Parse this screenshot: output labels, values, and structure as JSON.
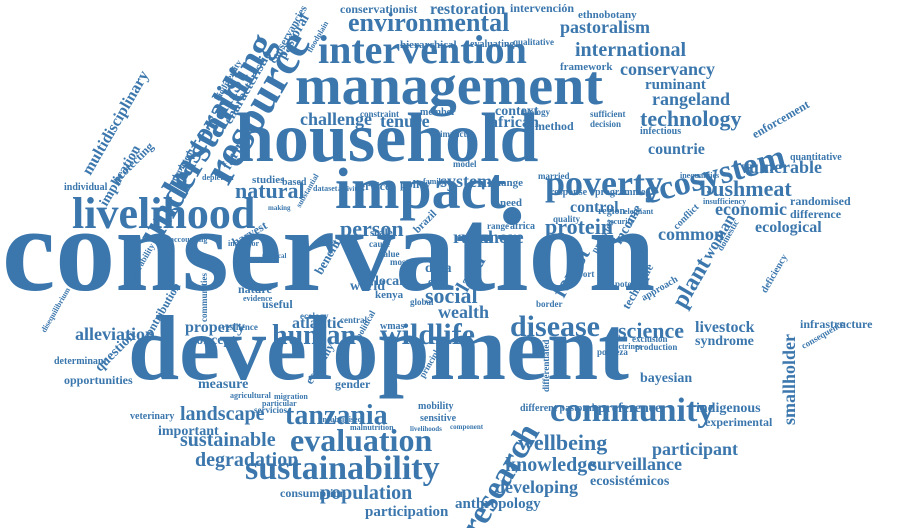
{
  "cloud": {
    "color": "#3b77ad",
    "words": {
      "conservation": "conservation",
      "development": "development",
      "household": "household",
      "management": "management",
      "impact": "impact",
      "livelihood": "livelihood",
      "intervention": "intervention",
      "resource": "resource",
      "understanding": "understanding",
      "environmental": "environmental",
      "poverty": "poverty",
      "ecosystem": "ecosystem",
      "tanzania": "tanzania",
      "community": "community",
      "sustainability": "sustainability",
      "evaluation": "evaluation",
      "research": "research",
      "disease": "disease",
      "wildlife": "wildlife",
      "human": "human",
      "pastoralist": "pastoralist",
      "rangeland": "rangeland",
      "conservancy": "conservancy",
      "international": "international",
      "pastoralism": "pastoralism",
      "restoration": "restoration",
      "intervencion": "intervención",
      "ethnobotany": "ethnobotany",
      "conservationist": "conservationist",
      "technology": "technology",
      "ruminant": "ruminant",
      "vulnerable": "vulnerable",
      "bushmeat": "bushmeat",
      "economic": "economic",
      "ecological": "ecological",
      "protein": "protein",
      "control": "control",
      "person": "person",
      "natural": "natural",
      "tenure": "tenure",
      "challenge": "challenge",
      "african": "african",
      "science": "science",
      "property": "property",
      "alleviation": "alleviation",
      "landscape": "landscape",
      "sustainable": "sustainable",
      "degradation": "degradation",
      "population": "population",
      "wellbeing": "wellbeing",
      "knowledge": "knowledge",
      "surveillance": "surveillance",
      "developing": "developing",
      "ecosistemicos": "ecosistémicos",
      "anthropology": "anthropology",
      "participation": "participation",
      "participant": "participant",
      "consumption": "consumption",
      "smallholder": "smallholder",
      "livestock": "livestock",
      "syndrome": "syndrome",
      "indigenous": "indigenous",
      "experimental": "experimental",
      "bayesian": "bayesian",
      "preference": "preference",
      "infrastructure": "infrastructure",
      "common": "common",
      "woman": "woman",
      "plant": "plant",
      "forest": "forest",
      "social": "social",
      "wealth": "wealth",
      "land": "land",
      "rural": "rural",
      "more": "more",
      "system": "system",
      "multidisciplinary": "multidisciplinary",
      "implication": "implication",
      "protecting": "protecting",
      "characteristic": "characteristic",
      "farmer": "farmer",
      "conservancies": "conservancies",
      "pastoral": "pastoral",
      "framework": "framework",
      "hierarchical": "hierarchical",
      "evaluating": "evaluating",
      "qualitative": "qualitative",
      "countrie": "countrie",
      "enforcement": "enforcement",
      "quantitative": "quantitative",
      "randomised": "randomised",
      "difference": "difference",
      "infectious": "infectious",
      "context": "context",
      "method": "method",
      "studies": "studies",
      "based": "based",
      "service": "service",
      "policy": "policy",
      "change": "change",
      "need": "need",
      "individual": "individual",
      "concept": "concept",
      "atlantic": "atlantic",
      "measure": "measure",
      "important": "important",
      "question": "question",
      "opportunities": "opportunities",
      "veterinary": "veterinary",
      "determinant": "determinant",
      "contribution": "contribution",
      "nature": "nature",
      "useful": "useful",
      "gender": "gender",
      "mobility": "mobility",
      "different_pastoral": "different pastoral",
      "wmas": "wmas",
      "economy": "economy",
      "data": "data",
      "case": "case",
      "local": "local",
      "kenya": "kenya",
      "world": "world",
      "scale": "scale",
      "benefit": "benefit",
      "income": "income",
      "sensitive": "sensitive",
      "servicios": "servicios",
      "impacts": "impacts",
      "biology": "biology",
      "married": "married",
      "response": "response",
      "programme": "programme",
      "region": "region",
      "quality": "quality",
      "decision": "decision",
      "sufficient": "sufficient",
      "approach": "approach",
      "technique": "technique",
      "deficiency": "deficiency",
      "consequence": "consequence",
      "exclusion": "exclusion",
      "production": "production",
      "doctrines": "doctrines",
      "pobreza": "pobreza",
      "border": "border",
      "report": "report",
      "africa": "africa",
      "range": "range",
      "cause": "cause",
      "value": "value",
      "most": "most",
      "protected": "protected",
      "potential": "potential",
      "member": "member",
      "constraint": "constraint",
      "resilience": "resilience",
      "ecology": "ecology",
      "political": "political",
      "central": "central",
      "principle": "principle",
      "agricultural": "agricultural",
      "evidence": "evidence",
      "particular": "particular",
      "migration": "migration",
      "unsubsidised": "unsubsidised",
      "malnutrition": "malnutrition",
      "livelihoods": "livelihoods",
      "component": "component",
      "vulnerability": "vulnerability",
      "communities": "communities",
      "biodiversity": "biodiversity",
      "accounting": "accounting",
      "harvest": "harvest",
      "indicator": "indicator",
      "survey": "survey",
      "depleted": "depleted",
      "depletion": "depletion",
      "inequalities": "inequalities",
      "insufficiency": "insufficiency",
      "domestic": "domestic",
      "conflict": "conflict",
      "elephant": "elephant",
      "security": "security",
      "brazil": "brazil",
      "family": "family",
      "eaecc": "eaecc",
      "threat": "threat",
      "disequilibrium": "disequilibrium",
      "floodplain": "floodplain",
      "substantial": "substantial",
      "dataset": "dataset",
      "activities": "activities",
      "making": "making",
      "physical": "physical",
      "model": "model",
      "deaths": "deaths",
      "quantum": "quantum",
      "differentiated": "differentiated",
      "mixed": "mixed",
      "greater": "greater",
      "contact": "contact",
      "population_ar": "adoption",
      "collective": "collective",
      "ratio": "ratio",
      "zambia": "zambia",
      "crop": "crop",
      "cross": "cross",
      "toward": "toward",
      "efficiency": "efficiency",
      "human_dev": "reduction",
      "global": "global"
    }
  }
}
